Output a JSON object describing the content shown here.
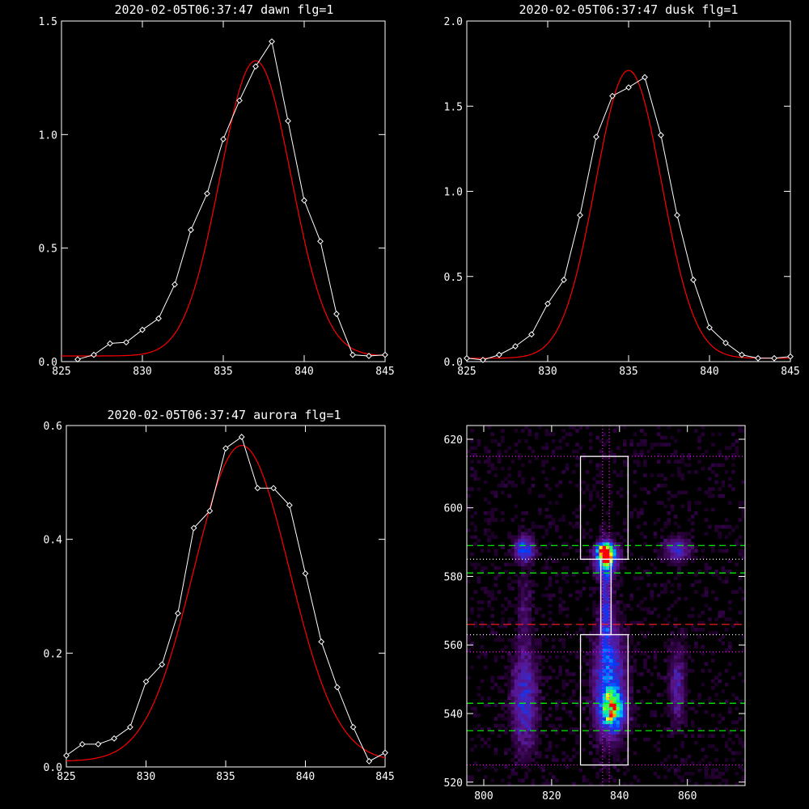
{
  "colors": {
    "background": "#000000",
    "data": "#ffffff",
    "fit": "#ff0000",
    "green_line": "#00ff00",
    "red_line": "#ff2020",
    "magenta": "#ff00ff"
  },
  "chart_data": [
    {
      "type": "line",
      "title": "2020-02-05T06:37:47 dawn flg=1",
      "xlabel": "",
      "ylabel": "",
      "xlim": [
        825,
        845
      ],
      "ylim": [
        0,
        1.5
      ],
      "xticks": [
        825,
        830,
        835,
        840,
        845
      ],
      "yticks": [
        0.0,
        0.5,
        1.0,
        1.5
      ],
      "ytick_labels": [
        "0.0",
        "0.5",
        "1.0",
        "1.5"
      ],
      "x": [
        826,
        827,
        828,
        829,
        830,
        831,
        832,
        833,
        834,
        835,
        836,
        837,
        838,
        839,
        840,
        841,
        842,
        843,
        844,
        845
      ],
      "series": [
        {
          "values": [
            0.01,
            0.03,
            0.08,
            0.085,
            0.14,
            0.19,
            0.34,
            0.58,
            0.74,
            0.98,
            1.15,
            1.3,
            1.41,
            1.06,
            0.71,
            0.53,
            0.21,
            0.03,
            0.025,
            0.03
          ],
          "markers": true
        },
        {
          "fit": "gaussian",
          "amplitude": 1.3,
          "center": 837.0,
          "sigma": 2.2,
          "offset": 0.025
        }
      ]
    },
    {
      "type": "line",
      "title": "2020-02-05T06:37:47 dusk flg=1",
      "xlabel": "",
      "ylabel": "",
      "xlim": [
        825,
        845
      ],
      "ylim": [
        0,
        2.0
      ],
      "xticks": [
        825,
        830,
        835,
        840,
        845
      ],
      "yticks": [
        0.0,
        0.5,
        1.0,
        1.5,
        2.0
      ],
      "ytick_labels": [
        "0.0",
        "0.5",
        "1.0",
        "1.5",
        "2.0"
      ],
      "x": [
        825,
        826,
        827,
        828,
        829,
        830,
        831,
        832,
        833,
        834,
        835,
        836,
        837,
        838,
        839,
        840,
        841,
        842,
        843,
        844,
        845
      ],
      "series": [
        {
          "values": [
            0.02,
            0.01,
            0.04,
            0.09,
            0.16,
            0.34,
            0.48,
            0.86,
            1.32,
            1.56,
            1.61,
            1.67,
            1.33,
            0.86,
            0.48,
            0.2,
            0.11,
            0.04,
            0.02,
            0.02,
            0.03
          ],
          "markers": true
        },
        {
          "fit": "gaussian",
          "amplitude": 1.69,
          "center": 835.0,
          "sigma": 2.05,
          "offset": 0.02
        }
      ]
    },
    {
      "type": "line",
      "title": "2020-02-05T06:37:47 aurora flg=1",
      "xlabel": "",
      "ylabel": "",
      "xlim": [
        825,
        845
      ],
      "ylim": [
        0,
        0.6
      ],
      "xticks": [
        825,
        830,
        835,
        840,
        845
      ],
      "yticks": [
        0.0,
        0.2,
        0.4,
        0.6
      ],
      "ytick_labels": [
        "0.0",
        "0.2",
        "0.4",
        "0.6"
      ],
      "x": [
        825,
        826,
        827,
        828,
        829,
        830,
        831,
        832,
        833,
        834,
        835,
        836,
        837,
        838,
        839,
        840,
        841,
        842,
        843,
        844,
        845
      ],
      "series": [
        {
          "values": [
            0.02,
            0.04,
            0.04,
            0.05,
            0.07,
            0.15,
            0.18,
            0.27,
            0.42,
            0.45,
            0.56,
            0.58,
            0.49,
            0.49,
            0.46,
            0.34,
            0.22,
            0.14,
            0.07,
            0.01,
            0.025
          ],
          "markers": true
        },
        {
          "fit": "gaussian",
          "amplitude": 0.555,
          "center": 836.0,
          "sigma": 3.0,
          "offset": 0.01
        }
      ]
    },
    {
      "type": "heatmap",
      "title": "",
      "xlabel": "",
      "ylabel": "",
      "xlim": [
        795,
        877
      ],
      "ylim": [
        519,
        624
      ],
      "xticks": [
        800,
        820,
        840,
        860
      ],
      "yticks": [
        520,
        540,
        560,
        580,
        600,
        620
      ],
      "colormap": "rainbow",
      "blobs": [
        {
          "x": 836,
          "y": 587,
          "sx": 1.6,
          "sy": 1.6,
          "amp": 1.0
        },
        {
          "x": 836,
          "y": 585,
          "sx": 2.2,
          "sy": 3.2,
          "amp": 0.55
        },
        {
          "x": 836,
          "y": 572,
          "sx": 1.0,
          "sy": 10.0,
          "amp": 0.28
        },
        {
          "x": 838,
          "y": 541,
          "sx": 2.4,
          "sy": 3.5,
          "amp": 0.65
        },
        {
          "x": 837,
          "y": 550,
          "sx": 3.0,
          "sy": 11.0,
          "amp": 0.42
        },
        {
          "x": 812,
          "y": 588,
          "sx": 2.0,
          "sy": 2.5,
          "amp": 0.42
        },
        {
          "x": 812,
          "y": 544,
          "sx": 2.5,
          "sy": 10.0,
          "amp": 0.3
        },
        {
          "x": 812,
          "y": 570,
          "sx": 1.2,
          "sy": 8.0,
          "amp": 0.12
        },
        {
          "x": 857,
          "y": 588,
          "sx": 2.5,
          "sy": 2.4,
          "amp": 0.3
        },
        {
          "x": 857,
          "y": 548,
          "sx": 1.6,
          "sy": 8.0,
          "amp": 0.22
        }
      ],
      "boxes": [
        {
          "x0": 828.5,
          "x1": 842.5,
          "y0": 585,
          "y1": 615
        },
        {
          "x0": 828.5,
          "x1": 842.5,
          "y0": 525,
          "y1": 563
        },
        {
          "x0": 834.5,
          "x1": 837.5,
          "y0": 563,
          "y1": 585
        }
      ],
      "hlines": [
        {
          "y": 589,
          "style": "green-dashed"
        },
        {
          "y": 581,
          "style": "green-dashed"
        },
        {
          "y": 543,
          "style": "green-dashed"
        },
        {
          "y": 535,
          "style": "green-dashed"
        },
        {
          "y": 566,
          "style": "red-dashed"
        },
        {
          "y": 615,
          "style": "magenta-dotted"
        },
        {
          "y": 585,
          "style": "white-dotted"
        },
        {
          "y": 563,
          "style": "white-dotted"
        },
        {
          "y": 558,
          "style": "magenta-dotted"
        },
        {
          "y": 525,
          "style": "magenta-dotted"
        }
      ],
      "vlines": [
        {
          "x": 835,
          "style": "magenta-dotted"
        },
        {
          "x": 837,
          "style": "magenta-dotted"
        }
      ]
    }
  ]
}
